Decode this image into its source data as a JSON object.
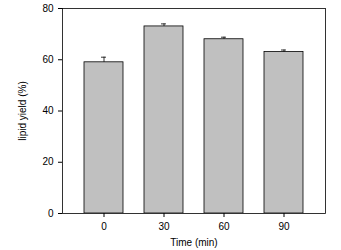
{
  "chart_data": {
    "type": "bar",
    "x_label": "Time (min)",
    "y_label": "lipid yield (%)",
    "categories": [
      "0",
      "30",
      "60",
      "90"
    ],
    "values": [
      59,
      73,
      68,
      63
    ],
    "errors": [
      2,
      1,
      0.8,
      0.8
    ],
    "color": "#c0c0c0",
    "ylim": [
      0,
      80
    ],
    "yticks": [
      0,
      20,
      40,
      60,
      80
    ],
    "grid": false
  }
}
